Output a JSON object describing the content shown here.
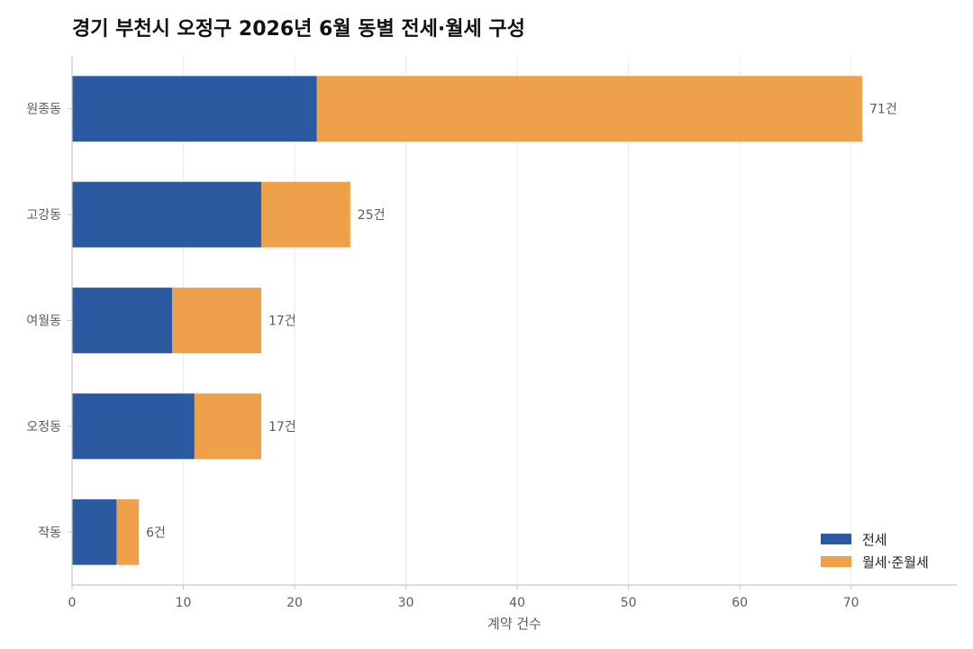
{
  "chart_data": {
    "type": "bar",
    "orientation": "horizontal",
    "stacked": true,
    "title": "경기 부천시 오정구 2026년 6월 동별 전세·월세 구성",
    "xlabel": "계약 건수",
    "ylabel": "",
    "xlim": [
      0,
      79.5
    ],
    "xticks": [
      0,
      10,
      20,
      30,
      40,
      50,
      60,
      70
    ],
    "categories": [
      "원종동",
      "고강동",
      "여월동",
      "오정동",
      "작동"
    ],
    "series": [
      {
        "name": "전세",
        "color": "#2c5aa0",
        "values": [
          22,
          17,
          9,
          11,
          4
        ]
      },
      {
        "name": "월세·준월세",
        "color": "#eea04a",
        "values": [
          49,
          8,
          8,
          6,
          2
        ]
      }
    ],
    "total_labels": [
      "71건",
      "25건",
      "17건",
      "17건",
      "6건"
    ],
    "grid": "vertical",
    "legend_position": "bottom-right"
  }
}
